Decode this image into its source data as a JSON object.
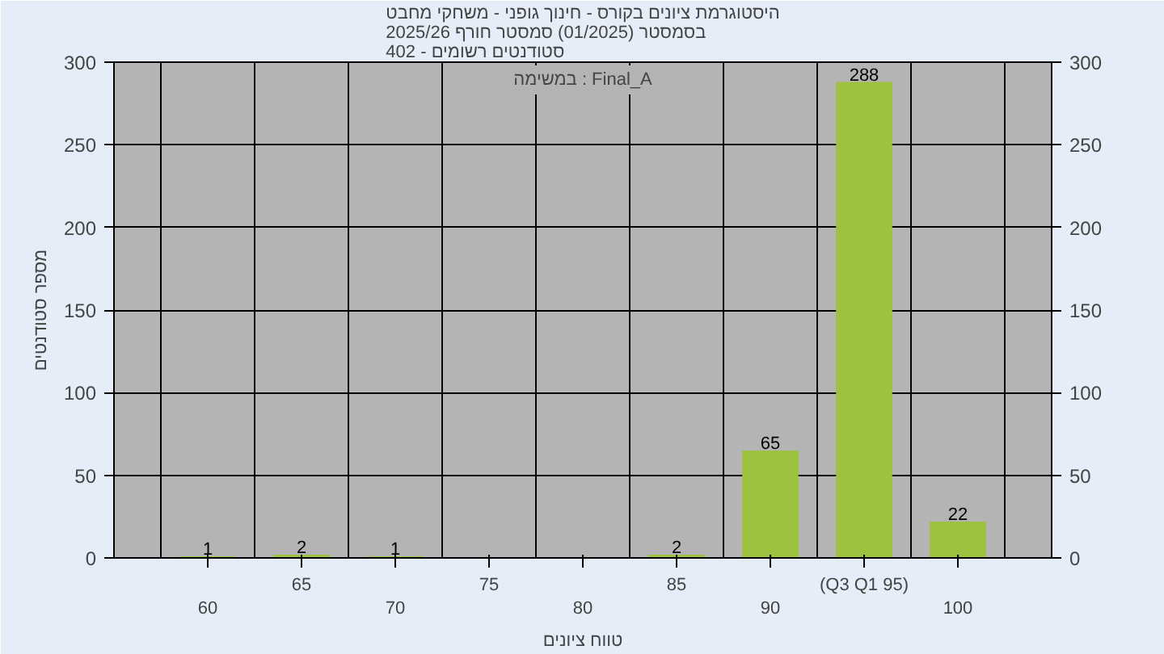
{
  "chart_data": {
    "type": "bar",
    "title": "היסטוגרמת ציונים בקורס - חינוך גופני - משחקי מחבט\nבסמסטר (01/2025) סמסטר חורף 2025/26\nסטודנטים רשומים - 402",
    "xlabel": "טווח ציונים",
    "ylabel": "מספר סטודנטים",
    "annotations": [
      "במשימה : Final_A"
    ],
    "categories": [
      "60",
      "65",
      "70",
      "75",
      "80",
      "85",
      "90",
      "(Q3 Q1 95)",
      "100"
    ],
    "values": [
      1,
      2,
      1,
      0,
      0,
      2,
      65,
      288,
      22
    ],
    "value_labels": [
      "1",
      "2",
      "1",
      null,
      null,
      "2",
      "65",
      "288",
      "22"
    ],
    "color": "#9dc23f",
    "ylim": [
      0,
      300
    ],
    "yticks": [
      0,
      50,
      100,
      150,
      200,
      250,
      300
    ],
    "y2lim": [
      0,
      300
    ],
    "y2ticks": [
      0,
      50,
      100,
      150,
      200,
      250,
      300
    ],
    "grid": true
  }
}
